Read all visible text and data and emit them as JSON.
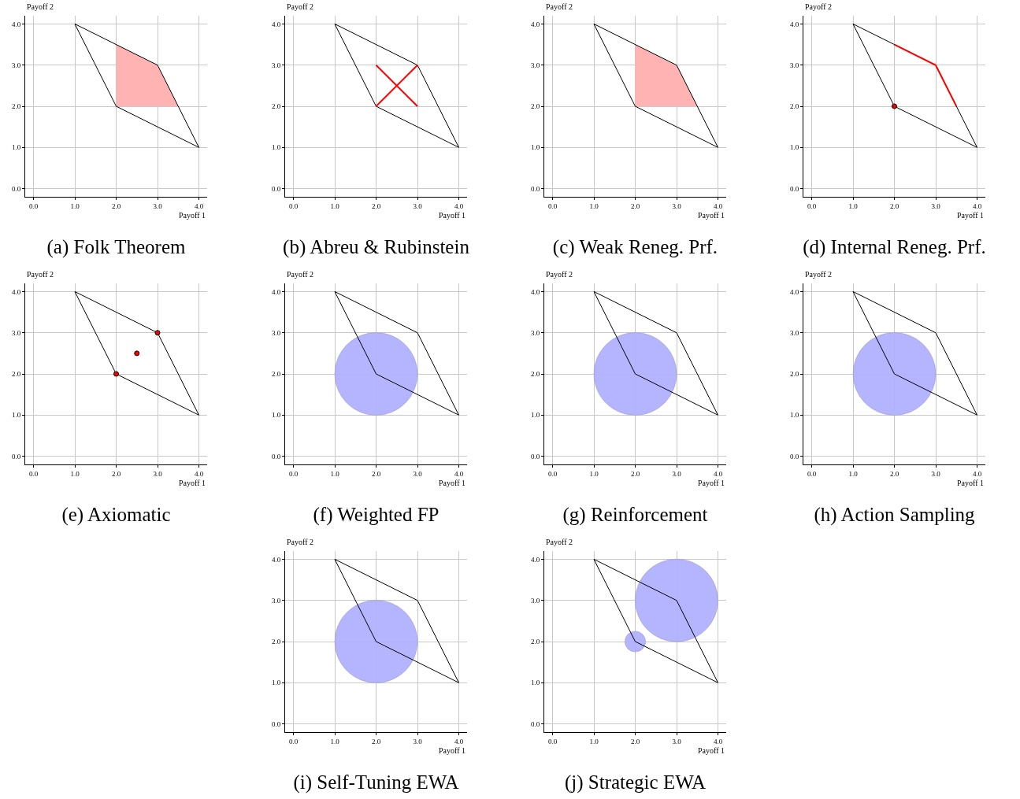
{
  "chart_data": [
    {
      "type": "line",
      "title": "(a) Folk Theorem",
      "xlabel": "Payoff 1",
      "ylabel": "Payoff 2",
      "xlim": [
        -0.2,
        4.2
      ],
      "ylim": [
        -0.2,
        4.2
      ],
      "xticks": [
        {
          "value": 0,
          "label": "0.0"
        },
        {
          "value": 1,
          "label": "1.0"
        },
        {
          "value": 2,
          "label": "2.0"
        },
        {
          "value": 3,
          "label": "3.0"
        },
        {
          "value": 4,
          "label": "4.0"
        }
      ],
      "yticks": [
        {
          "value": 0,
          "label": "0.0"
        },
        {
          "value": 1,
          "label": "1.0"
        },
        {
          "value": 2,
          "label": "2.0"
        },
        {
          "value": 3,
          "label": "3.0"
        },
        {
          "value": 4,
          "label": "4.0"
        }
      ],
      "grid": true,
      "series": [
        {
          "type": "area",
          "color": "#ffb3b3",
          "x": [
            2,
            2,
            3,
            3.5,
            2
          ],
          "values": [
            2,
            3.5,
            3,
            2,
            2
          ]
        },
        {
          "type": "line",
          "color": "#000000",
          "x": [
            1,
            3,
            4
          ],
          "values": [
            4,
            3,
            1
          ]
        },
        {
          "type": "line",
          "color": "#000000",
          "x": [
            1,
            2,
            4
          ],
          "values": [
            4,
            2,
            1
          ]
        }
      ]
    },
    {
      "type": "line",
      "title": "(b) Abreu & Rubinstein",
      "xlabel": "Payoff 1",
      "ylabel": "Payoff 2",
      "xlim": [
        -0.2,
        4.2
      ],
      "ylim": [
        -0.2,
        4.2
      ],
      "xticks": [
        {
          "value": 0,
          "label": "0.0"
        },
        {
          "value": 1,
          "label": "1.0"
        },
        {
          "value": 2,
          "label": "2.0"
        },
        {
          "value": 3,
          "label": "3.0"
        },
        {
          "value": 4,
          "label": "4.0"
        }
      ],
      "yticks": [
        {
          "value": 0,
          "label": "0.0"
        },
        {
          "value": 1,
          "label": "1.0"
        },
        {
          "value": 2,
          "label": "2.0"
        },
        {
          "value": 3,
          "label": "3.0"
        },
        {
          "value": 4,
          "label": "4.0"
        }
      ],
      "grid": true,
      "series": [
        {
          "type": "line",
          "color": "#000000",
          "x": [
            1,
            3,
            4
          ],
          "values": [
            4,
            3,
            1
          ]
        },
        {
          "type": "line",
          "color": "#000000",
          "x": [
            1,
            2,
            4
          ],
          "values": [
            4,
            2,
            1
          ]
        },
        {
          "type": "line",
          "color": "#ff0000",
          "x": [
            2,
            3
          ],
          "values": [
            3,
            2
          ]
        },
        {
          "type": "line",
          "color": "#ff0000",
          "x": [
            2,
            3
          ],
          "values": [
            2,
            3
          ]
        }
      ]
    },
    {
      "type": "line",
      "title": "(c) Weak Reneg. Prf.",
      "xlabel": "Payoff 1",
      "ylabel": "Payoff 2",
      "xlim": [
        -0.2,
        4.2
      ],
      "ylim": [
        -0.2,
        4.2
      ],
      "xticks": [
        {
          "value": 0,
          "label": "0.0"
        },
        {
          "value": 1,
          "label": "1.0"
        },
        {
          "value": 2,
          "label": "2.0"
        },
        {
          "value": 3,
          "label": "3.0"
        },
        {
          "value": 4,
          "label": "4.0"
        }
      ],
      "yticks": [
        {
          "value": 0,
          "label": "0.0"
        },
        {
          "value": 1,
          "label": "1.0"
        },
        {
          "value": 2,
          "label": "2.0"
        },
        {
          "value": 3,
          "label": "3.0"
        },
        {
          "value": 4,
          "label": "4.0"
        }
      ],
      "grid": true,
      "series": [
        {
          "type": "area",
          "color": "#ffb3b3",
          "x": [
            2,
            2,
            3,
            3.5,
            2
          ],
          "values": [
            2,
            3.5,
            3,
            2,
            2
          ]
        },
        {
          "type": "line",
          "color": "#000000",
          "x": [
            1,
            3,
            4
          ],
          "values": [
            4,
            3,
            1
          ]
        },
        {
          "type": "line",
          "color": "#000000",
          "x": [
            1,
            2,
            4
          ],
          "values": [
            4,
            2,
            1
          ]
        }
      ]
    },
    {
      "type": "line",
      "title": "(d) Internal Reneg. Prf.",
      "xlabel": "Payoff 1",
      "ylabel": "Payoff 2",
      "xlim": [
        -0.2,
        4.2
      ],
      "ylim": [
        -0.2,
        4.2
      ],
      "xticks": [
        {
          "value": 0,
          "label": "0.0"
        },
        {
          "value": 1,
          "label": "1.0"
        },
        {
          "value": 2,
          "label": "2.0"
        },
        {
          "value": 3,
          "label": "3.0"
        },
        {
          "value": 4,
          "label": "4.0"
        }
      ],
      "yticks": [
        {
          "value": 0,
          "label": "0.0"
        },
        {
          "value": 1,
          "label": "1.0"
        },
        {
          "value": 2,
          "label": "2.0"
        },
        {
          "value": 3,
          "label": "3.0"
        },
        {
          "value": 4,
          "label": "4.0"
        }
      ],
      "grid": true,
      "series": [
        {
          "type": "line",
          "color": "#000000",
          "x": [
            1,
            3,
            4
          ],
          "values": [
            4,
            3,
            1
          ]
        },
        {
          "type": "line",
          "color": "#000000",
          "x": [
            1,
            2,
            4
          ],
          "values": [
            4,
            2,
            1
          ]
        },
        {
          "type": "line",
          "color": "#ff0000",
          "x": [
            2,
            3,
            3.5
          ],
          "values": [
            3.5,
            3,
            2
          ]
        },
        {
          "type": "scatter",
          "color": "#ff0000",
          "x": [
            2
          ],
          "values": [
            2
          ]
        }
      ]
    },
    {
      "type": "line",
      "title": "(e) Axiomatic",
      "xlabel": "Payoff 1",
      "ylabel": "Payoff 2",
      "xlim": [
        -0.2,
        4.2
      ],
      "ylim": [
        -0.2,
        4.2
      ],
      "xticks": [
        {
          "value": 0,
          "label": "0.0"
        },
        {
          "value": 1,
          "label": "1.0"
        },
        {
          "value": 2,
          "label": "2.0"
        },
        {
          "value": 3,
          "label": "3.0"
        },
        {
          "value": 4,
          "label": "4.0"
        }
      ],
      "yticks": [
        {
          "value": 0,
          "label": "0.0"
        },
        {
          "value": 1,
          "label": "1.0"
        },
        {
          "value": 2,
          "label": "2.0"
        },
        {
          "value": 3,
          "label": "3.0"
        },
        {
          "value": 4,
          "label": "4.0"
        }
      ],
      "grid": true,
      "series": [
        {
          "type": "line",
          "color": "#000000",
          "x": [
            1,
            3,
            4
          ],
          "values": [
            4,
            3,
            1
          ]
        },
        {
          "type": "line",
          "color": "#000000",
          "x": [
            1,
            2,
            4
          ],
          "values": [
            4,
            2,
            1
          ]
        },
        {
          "type": "scatter",
          "color": "#ff0000",
          "x": [
            2,
            3,
            2.5
          ],
          "values": [
            2,
            3,
            2.5
          ]
        }
      ]
    },
    {
      "type": "line",
      "title": "(f) Weighted FP",
      "xlabel": "Payoff 1",
      "ylabel": "Payoff 2",
      "xlim": [
        -0.2,
        4.2
      ],
      "ylim": [
        -0.2,
        4.2
      ],
      "xticks": [
        {
          "value": 0,
          "label": "0.0"
        },
        {
          "value": 1,
          "label": "1.0"
        },
        {
          "value": 2,
          "label": "2.0"
        },
        {
          "value": 3,
          "label": "3.0"
        },
        {
          "value": 4,
          "label": "4.0"
        }
      ],
      "yticks": [
        {
          "value": 0,
          "label": "0.0"
        },
        {
          "value": 1,
          "label": "1.0"
        },
        {
          "value": 2,
          "label": "2.0"
        },
        {
          "value": 3,
          "label": "3.0"
        },
        {
          "value": 4,
          "label": "4.0"
        }
      ],
      "grid": true,
      "series": [
        {
          "type": "bubble",
          "color": "#b0b0ff",
          "x": [
            2
          ],
          "values": [
            2
          ],
          "sizes": [
            1
          ]
        },
        {
          "type": "line",
          "color": "#000000",
          "x": [
            1,
            3,
            4
          ],
          "values": [
            4,
            3,
            1
          ]
        },
        {
          "type": "line",
          "color": "#000000",
          "x": [
            1,
            2,
            4
          ],
          "values": [
            4,
            2,
            1
          ]
        }
      ]
    },
    {
      "type": "line",
      "title": "(g) Reinforcement",
      "xlabel": "Payoff 1",
      "ylabel": "Payoff 2",
      "xlim": [
        -0.2,
        4.2
      ],
      "ylim": [
        -0.2,
        4.2
      ],
      "xticks": [
        {
          "value": 0,
          "label": "0.0"
        },
        {
          "value": 1,
          "label": "1.0"
        },
        {
          "value": 2,
          "label": "2.0"
        },
        {
          "value": 3,
          "label": "3.0"
        },
        {
          "value": 4,
          "label": "4.0"
        }
      ],
      "yticks": [
        {
          "value": 0,
          "label": "0.0"
        },
        {
          "value": 1,
          "label": "1.0"
        },
        {
          "value": 2,
          "label": "2.0"
        },
        {
          "value": 3,
          "label": "3.0"
        },
        {
          "value": 4,
          "label": "4.0"
        }
      ],
      "grid": true,
      "series": [
        {
          "type": "bubble",
          "color": "#b0b0ff",
          "x": [
            2
          ],
          "values": [
            2
          ],
          "sizes": [
            1
          ]
        },
        {
          "type": "line",
          "color": "#000000",
          "x": [
            1,
            3,
            4
          ],
          "values": [
            4,
            3,
            1
          ]
        },
        {
          "type": "line",
          "color": "#000000",
          "x": [
            1,
            2,
            4
          ],
          "values": [
            4,
            2,
            1
          ]
        }
      ]
    },
    {
      "type": "line",
      "title": "(h) Action Sampling",
      "xlabel": "Payoff 1",
      "ylabel": "Payoff 2",
      "xlim": [
        -0.2,
        4.2
      ],
      "ylim": [
        -0.2,
        4.2
      ],
      "xticks": [
        {
          "value": 0,
          "label": "0.0"
        },
        {
          "value": 1,
          "label": "1.0"
        },
        {
          "value": 2,
          "label": "2.0"
        },
        {
          "value": 3,
          "label": "3.0"
        },
        {
          "value": 4,
          "label": "4.0"
        }
      ],
      "yticks": [
        {
          "value": 0,
          "label": "0.0"
        },
        {
          "value": 1,
          "label": "1.0"
        },
        {
          "value": 2,
          "label": "2.0"
        },
        {
          "value": 3,
          "label": "3.0"
        },
        {
          "value": 4,
          "label": "4.0"
        }
      ],
      "grid": true,
      "series": [
        {
          "type": "bubble",
          "color": "#b0b0ff",
          "x": [
            2
          ],
          "values": [
            2
          ],
          "sizes": [
            1
          ]
        },
        {
          "type": "line",
          "color": "#000000",
          "x": [
            1,
            3,
            4
          ],
          "values": [
            4,
            3,
            1
          ]
        },
        {
          "type": "line",
          "color": "#000000",
          "x": [
            1,
            2,
            4
          ],
          "values": [
            4,
            2,
            1
          ]
        }
      ]
    },
    {
      "type": "line",
      "title": "(i) Self-Tuning EWA",
      "xlabel": "Payoff 1",
      "ylabel": "Payoff 2",
      "xlim": [
        -0.2,
        4.2
      ],
      "ylim": [
        -0.2,
        4.2
      ],
      "xticks": [
        {
          "value": 0,
          "label": "0.0"
        },
        {
          "value": 1,
          "label": "1.0"
        },
        {
          "value": 2,
          "label": "2.0"
        },
        {
          "value": 3,
          "label": "3.0"
        },
        {
          "value": 4,
          "label": "4.0"
        }
      ],
      "yticks": [
        {
          "value": 0,
          "label": "0.0"
        },
        {
          "value": 1,
          "label": "1.0"
        },
        {
          "value": 2,
          "label": "2.0"
        },
        {
          "value": 3,
          "label": "3.0"
        },
        {
          "value": 4,
          "label": "4.0"
        }
      ],
      "grid": true,
      "series": [
        {
          "type": "bubble",
          "color": "#b0b0ff",
          "x": [
            2
          ],
          "values": [
            2
          ],
          "sizes": [
            1
          ]
        },
        {
          "type": "line",
          "color": "#000000",
          "x": [
            1,
            3,
            4
          ],
          "values": [
            4,
            3,
            1
          ]
        },
        {
          "type": "line",
          "color": "#000000",
          "x": [
            1,
            2,
            4
          ],
          "values": [
            4,
            2,
            1
          ]
        }
      ]
    },
    {
      "type": "line",
      "title": "(j) Strategic EWA",
      "xlabel": "Payoff 1",
      "ylabel": "Payoff 2",
      "xlim": [
        -0.2,
        4.2
      ],
      "ylim": [
        -0.2,
        4.2
      ],
      "xticks": [
        {
          "value": 0,
          "label": "0.0"
        },
        {
          "value": 1,
          "label": "1.0"
        },
        {
          "value": 2,
          "label": "2.0"
        },
        {
          "value": 3,
          "label": "3.0"
        },
        {
          "value": 4,
          "label": "4.0"
        }
      ],
      "yticks": [
        {
          "value": 0,
          "label": "0.0"
        },
        {
          "value": 1,
          "label": "1.0"
        },
        {
          "value": 2,
          "label": "2.0"
        },
        {
          "value": 3,
          "label": "3.0"
        },
        {
          "value": 4,
          "label": "4.0"
        }
      ],
      "grid": true,
      "series": [
        {
          "type": "bubble",
          "color": "#b0b0ff",
          "x": [
            3,
            2
          ],
          "values": [
            3,
            2
          ],
          "sizes": [
            1,
            0.0625
          ]
        },
        {
          "type": "line",
          "color": "#000000",
          "x": [
            1,
            3,
            4
          ],
          "values": [
            4,
            3,
            1
          ]
        },
        {
          "type": "line",
          "color": "#000000",
          "x": [
            1,
            2,
            4
          ],
          "values": [
            4,
            2,
            1
          ]
        }
      ]
    }
  ]
}
